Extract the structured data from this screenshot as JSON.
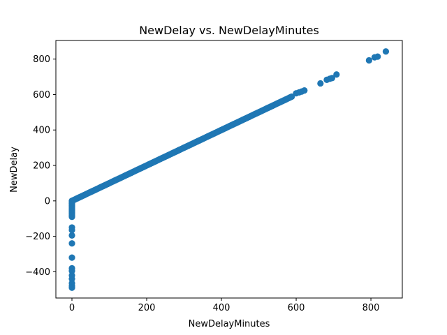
{
  "chart_data": {
    "type": "scatter",
    "title": "NewDelay vs. NewDelayMinutes",
    "xlabel": "NewDelayMinutes",
    "ylabel": "NewDelay",
    "xlim": [
      -43,
      884
    ],
    "ylim": [
      -548,
      905
    ],
    "xticks": [
      {
        "value": 0,
        "label": "0"
      },
      {
        "value": 200,
        "label": "200"
      },
      {
        "value": 400,
        "label": "400"
      },
      {
        "value": 600,
        "label": "600"
      },
      {
        "value": 800,
        "label": "800"
      }
    ],
    "yticks": [
      {
        "value": -400,
        "label": "−400"
      },
      {
        "value": -200,
        "label": "−200"
      },
      {
        "value": 0,
        "label": "0"
      },
      {
        "value": 200,
        "label": "200"
      },
      {
        "value": 400,
        "label": "400"
      },
      {
        "value": 600,
        "label": "600"
      },
      {
        "value": 800,
        "label": "800"
      }
    ],
    "grid": false,
    "legend": "none",
    "marker_color": "#1f77b4",
    "zero_column_y": [
      0,
      -5,
      -10,
      -15,
      -20,
      -25,
      -30,
      -35,
      -40,
      -45,
      -50,
      -55,
      -60,
      -65,
      -70,
      -80,
      -90,
      -150,
      -165,
      -195,
      -240,
      -320,
      -380,
      -395,
      -420,
      -440,
      -465,
      -480,
      -490
    ],
    "linear_segment": {
      "x_start": 0,
      "x_end": 590,
      "step": 3,
      "slope": 1
    },
    "outliers": [
      [
        600,
        607
      ],
      [
        608,
        612
      ],
      [
        615,
        617
      ],
      [
        622,
        623
      ],
      [
        665,
        663
      ],
      [
        682,
        683
      ],
      [
        690,
        689
      ],
      [
        696,
        693
      ],
      [
        708,
        713
      ],
      [
        795,
        793
      ],
      [
        810,
        810
      ],
      [
        818,
        814
      ],
      [
        840,
        843
      ]
    ]
  }
}
